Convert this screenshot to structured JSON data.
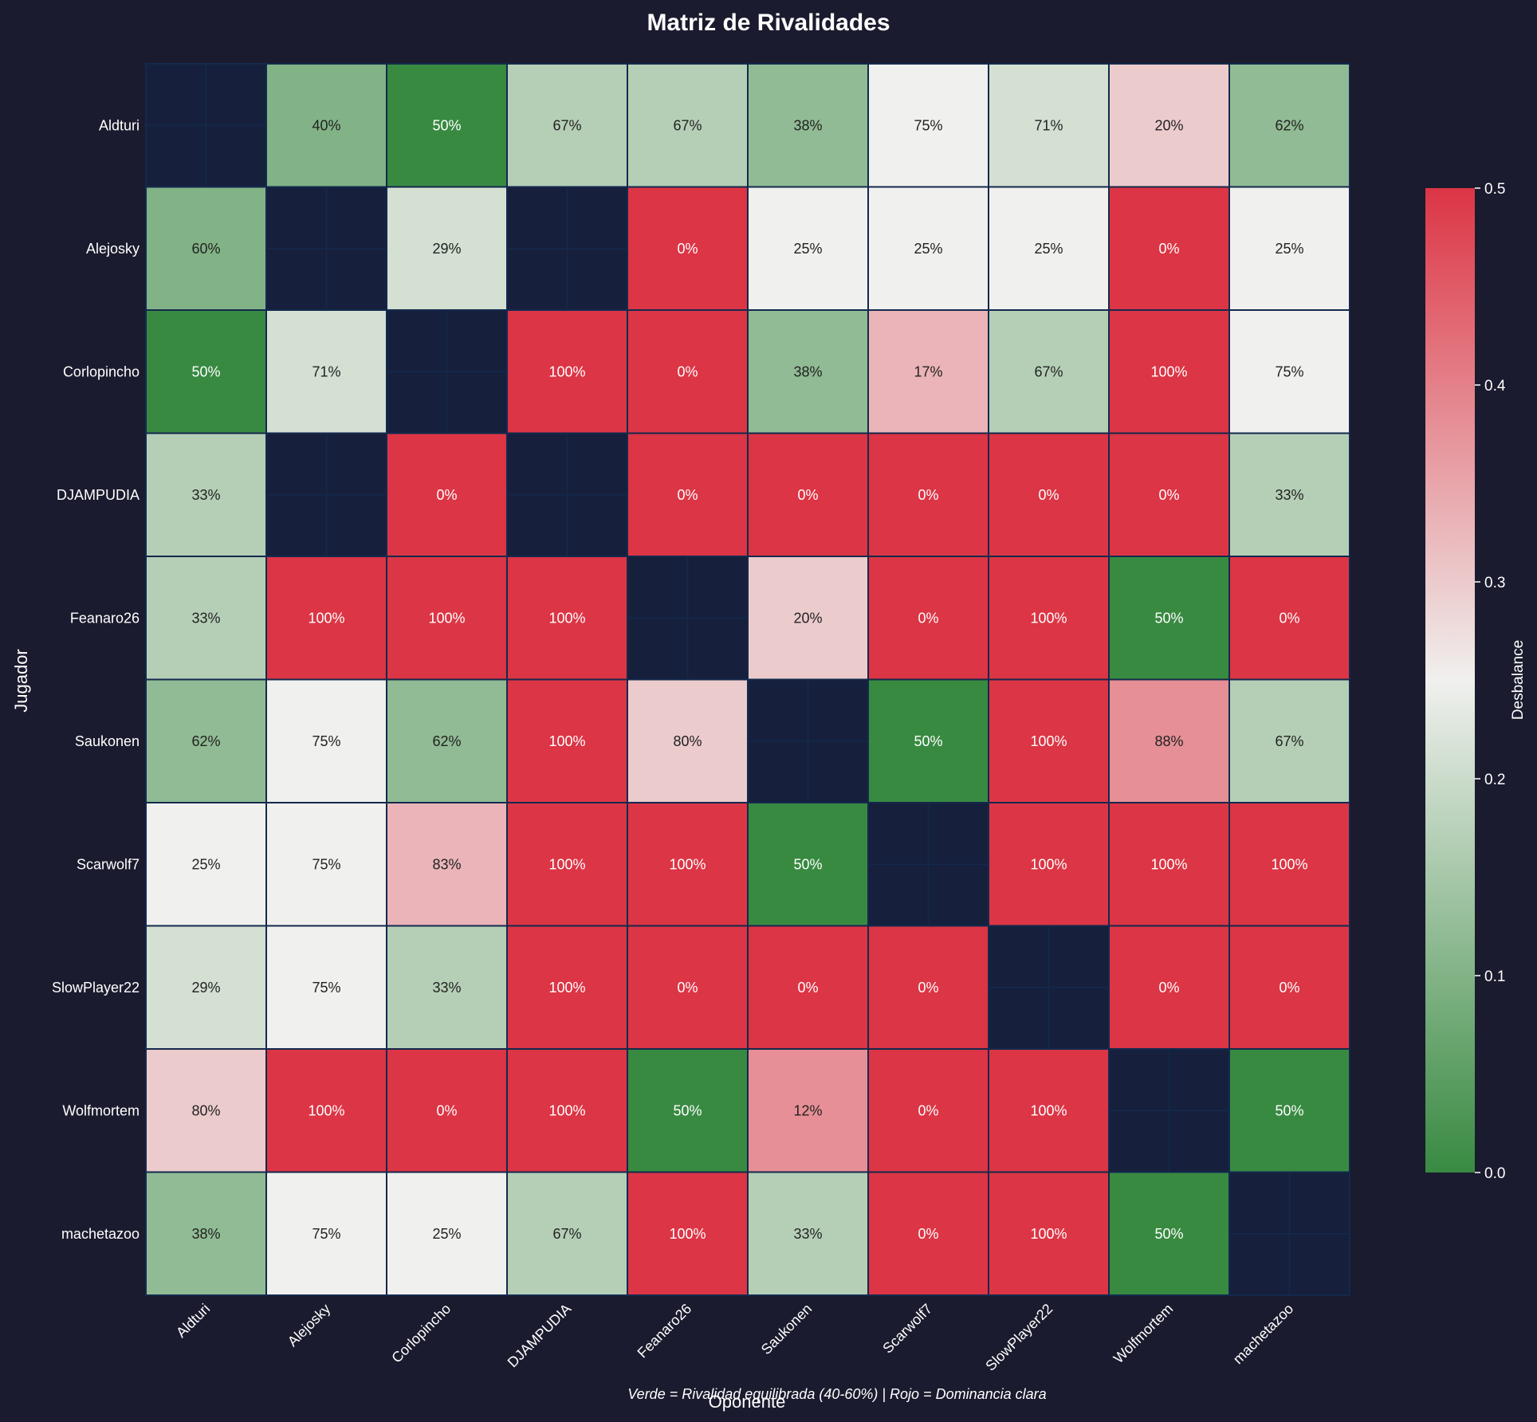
{
  "chart_data": {
    "type": "heatmap",
    "title": "Matriz de Rivalidades",
    "xlabel": "Oponente",
    "ylabel": "Jugador",
    "footnote": "Verde = Rivalidad equilibrada (40-60%) | Rojo = Dominancia clara",
    "rows": [
      "Aldturi",
      "Alejosky",
      "Corlopincho",
      "DJAMPUDIA",
      "Feanaro26",
      "Saukonen",
      "Scarwolf7",
      "SlowPlayer22",
      "Wolfmortem",
      "machetazoo"
    ],
    "cols": [
      "Aldturi",
      "Alejosky",
      "Corlopincho",
      "DJAMPUDIA",
      "Feanaro26",
      "Saukonen",
      "Scarwolf7",
      "SlowPlayer22",
      "Wolfmortem",
      "machetazoo"
    ],
    "values": [
      [
        null,
        40,
        50,
        67,
        67,
        38,
        75,
        71,
        20,
        62
      ],
      [
        60,
        null,
        29,
        null,
        0,
        25,
        25,
        25,
        0,
        25
      ],
      [
        50,
        71,
        null,
        100,
        0,
        38,
        17,
        67,
        100,
        75
      ],
      [
        33,
        null,
        0,
        null,
        0,
        0,
        0,
        0,
        0,
        33
      ],
      [
        33,
        100,
        100,
        100,
        null,
        20,
        0,
        100,
        50,
        0
      ],
      [
        62,
        75,
        62,
        100,
        80,
        null,
        50,
        100,
        88,
        67
      ],
      [
        25,
        75,
        83,
        100,
        100,
        50,
        null,
        100,
        100,
        100
      ],
      [
        29,
        75,
        33,
        100,
        0,
        0,
        0,
        null,
        0,
        0
      ],
      [
        80,
        100,
        0,
        100,
        50,
        12,
        0,
        100,
        null,
        50
      ],
      [
        38,
        75,
        25,
        67,
        100,
        33,
        0,
        100,
        50,
        null
      ]
    ],
    "value_suffix": "%",
    "color_metric": "|value/100 - 0.5|",
    "colorbar": {
      "label": "Desbalance",
      "range": [
        0.0,
        0.5
      ],
      "ticks": [
        "0.0",
        "0.1",
        "0.2",
        "0.3",
        "0.4",
        "0.5"
      ],
      "colors": [
        "#388a41",
        "#f0f0ee",
        "#dc3545"
      ]
    },
    "colors": {
      "background": "#1a1b2e",
      "empty_cell": "#16203d",
      "cell_border": "#13294d",
      "text_dark": "#222222",
      "text_light": "#ffffff"
    }
  }
}
